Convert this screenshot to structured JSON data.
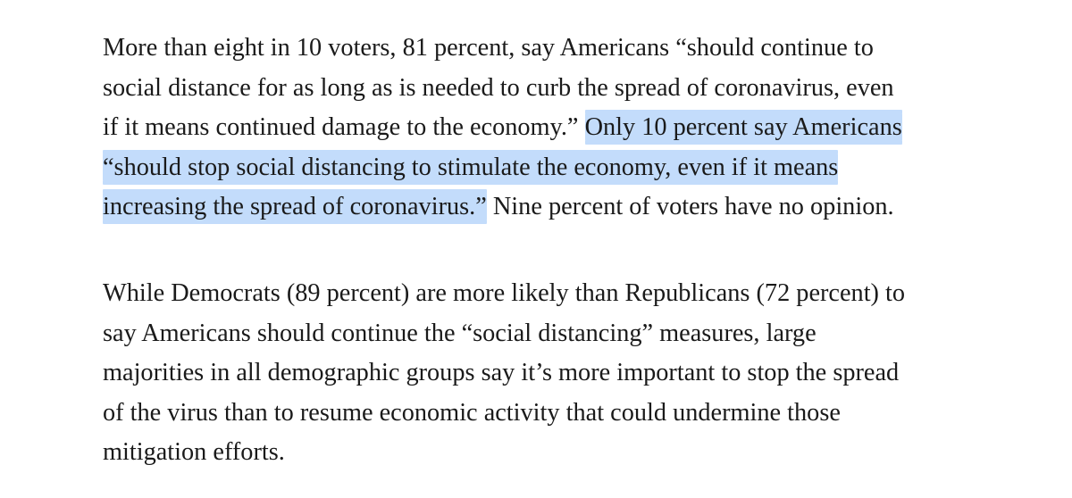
{
  "article": {
    "paragraph1": {
      "line1": "More than eight in 10 voters, 81 percent, say Americans “should continue to",
      "line2": "social distance for as long as is needed to curb the spread of coronavirus, even",
      "line3_plain": "if it means continued damage to the economy.” ",
      "line3_highlighted": "Only 10 percent say Americans",
      "line4_highlighted": "“should stop social distancing to stimulate the economy, even if it means",
      "line5_highlighted": "increasing the spread of coronavirus.”",
      "line5_plain": " Nine percent of voters have no opinion."
    },
    "paragraph2": {
      "line1": "While Democrats (89 percent) are more likely than Republicans (72 percent) to",
      "line2": "say Americans should continue the “social distancing” measures, large",
      "line3": "majorities in all demographic groups say it’s more important to stop the spread",
      "line4": "of the virus than to resume economic activity that could undermine those",
      "line5": "mitigation efforts."
    },
    "colors": {
      "text": "#1a1a1a",
      "selection_highlight": "#c3dcfb",
      "background": "#ffffff"
    }
  }
}
